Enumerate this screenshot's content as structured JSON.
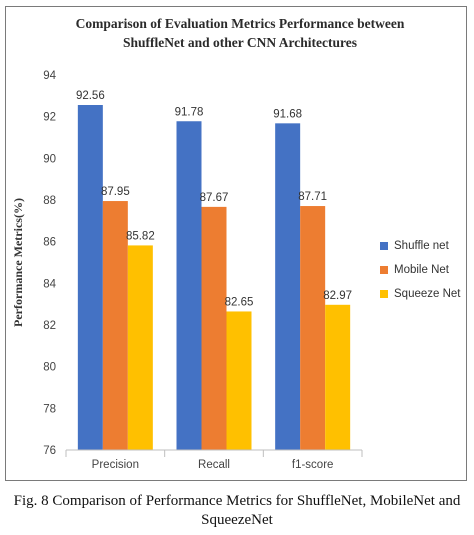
{
  "chart_data": {
    "type": "bar",
    "title_line1": "Comparison of Evaluation Metrics Performance between",
    "title_line2": "ShuffleNet and other CNN Architectures",
    "ylabel": "Performance Metrics(%)",
    "xlabel": "",
    "categories": [
      "Precision",
      "Recall",
      "f1-score"
    ],
    "ylim": [
      76,
      94
    ],
    "yticks": [
      76,
      78,
      80,
      82,
      84,
      86,
      88,
      90,
      92,
      94
    ],
    "series": [
      {
        "name": "Shuffle net",
        "color": "#4472C4",
        "values": [
          92.56,
          91.78,
          91.68
        ],
        "labels": [
          "92.56",
          "91.78",
          "91.68"
        ]
      },
      {
        "name": "Mobile Net",
        "color": "#ED7D31",
        "values": [
          87.95,
          87.67,
          87.71
        ],
        "labels": [
          "87.95",
          "87.67",
          "87.71"
        ]
      },
      {
        "name": "Squeeze Net",
        "color": "#FFC000",
        "values": [
          85.82,
          82.65,
          82.97
        ],
        "labels": [
          "85.82",
          "82.65",
          "82.97"
        ]
      }
    ],
    "grid": false,
    "legend_position": "right"
  },
  "caption": {
    "line1": "Fig. 8 Comparison of Performance Metrics for ShuffleNet, MobileNet and",
    "line2": "SqueezeNet"
  }
}
